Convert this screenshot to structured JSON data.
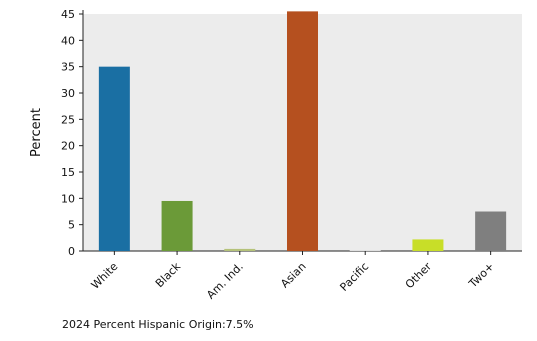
{
  "chart_data": {
    "type": "bar",
    "ylabel": "Percent",
    "xlabel": "",
    "ylim": [
      0,
      45
    ],
    "yticks": [
      0,
      5,
      10,
      15,
      20,
      25,
      30,
      35,
      40,
      45
    ],
    "categories": [
      "White",
      "Black",
      "Am. Ind.",
      "Asian",
      "Pacific",
      "Other",
      "Two+"
    ],
    "values": [
      35,
      9.5,
      0.4,
      45.5,
      0.1,
      2.2,
      7.5
    ],
    "colors": [
      "#1a6fa3",
      "#6b9a38",
      "#b5c27a",
      "#b5501f",
      "#d6d6d6",
      "#c8de28",
      "#7f7f7f"
    ],
    "grid": false,
    "background": "#ececec"
  },
  "footer": {
    "note": "2024 Percent Hispanic Origin:7.5%"
  }
}
